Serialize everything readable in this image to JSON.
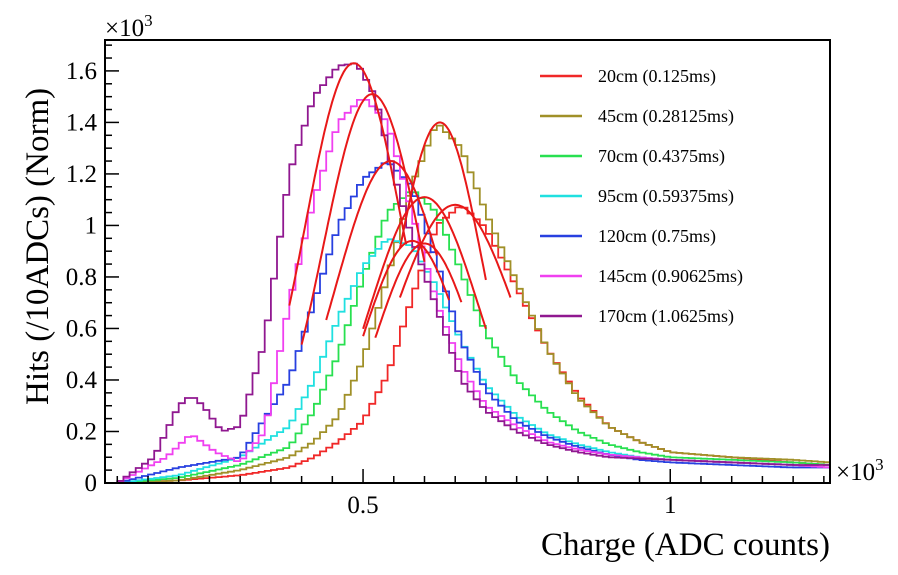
{
  "chart_data": {
    "type": "line",
    "xlabel": "Charge (ADC counts)",
    "ylabel": "Hits (/10ADCs) (Norm)",
    "x_multiplier_label": "×10",
    "y_multiplier_label": "×10",
    "multiplier_exponent": "3",
    "xlim": [
      0.08,
      1.26
    ],
    "ylim": [
      0,
      1.72
    ],
    "x_ticks": [
      {
        "value": 0.5,
        "label": "0.5"
      },
      {
        "value": 1,
        "label": "1"
      }
    ],
    "y_ticks": [
      {
        "value": 0,
        "label": "0"
      },
      {
        "value": 0.2,
        "label": "0.2"
      },
      {
        "value": 0.4,
        "label": "0.4"
      },
      {
        "value": 0.6,
        "label": "0.6"
      },
      {
        "value": 0.8,
        "label": "0.8"
      },
      {
        "value": 1.0,
        "label": "1"
      },
      {
        "value": 1.2,
        "label": "1.2"
      },
      {
        "value": 1.4,
        "label": "1.4"
      },
      {
        "value": 1.6,
        "label": "1.6"
      }
    ],
    "legend_position": "top-right",
    "series": [
      {
        "name": "20cm (0.125ms)",
        "color": "#f02828",
        "x": [
          0.1,
          0.2,
          0.3,
          0.38,
          0.42,
          0.46,
          0.5,
          0.54,
          0.58,
          0.62,
          0.66,
          0.7,
          0.75,
          0.8,
          0.85,
          0.9,
          0.95,
          1.0,
          1.1,
          1.2,
          1.26
        ],
        "y": [
          0.0,
          0.01,
          0.03,
          0.06,
          0.1,
          0.16,
          0.24,
          0.42,
          0.72,
          1.0,
          1.08,
          0.99,
          0.76,
          0.52,
          0.34,
          0.22,
          0.16,
          0.12,
          0.1,
          0.08,
          0.07
        ],
        "fit": {
          "mu": 0.65,
          "sigma": 0.1,
          "amp": 1.08,
          "range": [
            0.56,
            0.74
          ]
        }
      },
      {
        "name": "45cm (0.28125ms)",
        "color": "#a09028",
        "x": [
          0.1,
          0.2,
          0.3,
          0.38,
          0.42,
          0.46,
          0.5,
          0.54,
          0.58,
          0.62,
          0.66,
          0.7,
          0.75,
          0.8,
          0.85,
          0.9,
          0.95,
          1.0,
          1.1,
          1.2,
          1.26
        ],
        "y": [
          0.0,
          0.01,
          0.05,
          0.1,
          0.16,
          0.26,
          0.48,
          0.8,
          1.16,
          1.4,
          1.3,
          1.05,
          0.78,
          0.52,
          0.33,
          0.22,
          0.16,
          0.12,
          0.1,
          0.09,
          0.08
        ],
        "fit": {
          "mu": 0.625,
          "sigma": 0.07,
          "amp": 1.4,
          "range": [
            0.56,
            0.7
          ]
        }
      },
      {
        "name": "70cm (0.4375ms)",
        "color": "#28e050",
        "x": [
          0.1,
          0.2,
          0.3,
          0.38,
          0.42,
          0.46,
          0.5,
          0.54,
          0.58,
          0.62,
          0.66,
          0.7,
          0.75,
          0.8,
          0.85,
          0.9,
          0.95,
          1.0,
          1.1,
          1.2,
          1.26
        ],
        "y": [
          0.0,
          0.02,
          0.07,
          0.14,
          0.28,
          0.5,
          0.8,
          1.05,
          1.14,
          1.05,
          0.82,
          0.58,
          0.4,
          0.28,
          0.2,
          0.15,
          0.12,
          0.1,
          0.09,
          0.08,
          0.07
        ],
        "fit": {
          "mu": 0.6,
          "sigma": 0.09,
          "amp": 1.11,
          "range": [
            0.5,
            0.7
          ]
        }
      },
      {
        "name": "95cm (0.59375ms)",
        "color": "#20e0e0",
        "x": [
          0.1,
          0.2,
          0.3,
          0.38,
          0.42,
          0.46,
          0.5,
          0.54,
          0.58,
          0.62,
          0.66,
          0.7,
          0.75,
          0.8,
          0.85,
          0.9,
          0.95,
          1.0,
          1.1,
          1.2,
          1.26
        ],
        "y": [
          0.0,
          0.03,
          0.1,
          0.22,
          0.4,
          0.64,
          0.84,
          0.95,
          0.92,
          0.76,
          0.55,
          0.38,
          0.26,
          0.19,
          0.15,
          0.12,
          0.1,
          0.09,
          0.08,
          0.07,
          0.06
        ],
        "fit": {
          "mu": 0.58,
          "sigma": 0.08,
          "amp": 0.94,
          "range": [
            0.5,
            0.64
          ]
        }
      },
      {
        "name": "120cm (0.75ms)",
        "color": "#2840e0",
        "x": [
          0.1,
          0.2,
          0.3,
          0.38,
          0.42,
          0.46,
          0.5,
          0.54,
          0.58,
          0.62,
          0.66,
          0.7,
          0.75,
          0.8,
          0.85,
          0.9,
          0.95,
          1.0,
          1.1,
          1.2,
          1.26
        ],
        "y": [
          0.0,
          0.06,
          0.1,
          0.4,
          0.7,
          1.0,
          1.18,
          1.25,
          1.15,
          0.86,
          0.55,
          0.36,
          0.24,
          0.18,
          0.14,
          0.11,
          0.09,
          0.08,
          0.07,
          0.06,
          0.06
        ],
        "fit": {
          "mu": 0.545,
          "sigma": 0.09,
          "amp": 1.25,
          "range": [
            0.44,
            0.62
          ]
        }
      },
      {
        "name": "145cm (0.90625ms)",
        "color": "#f040f0",
        "x": [
          0.1,
          0.18,
          0.22,
          0.26,
          0.3,
          0.34,
          0.38,
          0.42,
          0.46,
          0.5,
          0.54,
          0.58,
          0.62,
          0.66,
          0.7,
          0.75,
          0.8,
          0.85,
          0.9,
          1.0,
          1.1,
          1.2,
          1.26
        ],
        "y": [
          0.0,
          0.1,
          0.19,
          0.12,
          0.08,
          0.2,
          0.7,
          1.1,
          1.4,
          1.5,
          1.4,
          1.05,
          0.7,
          0.45,
          0.3,
          0.22,
          0.16,
          0.13,
          0.11,
          0.09,
          0.08,
          0.07,
          0.06
        ],
        "fit": {
          "mu": 0.515,
          "sigma": 0.08,
          "amp": 1.51,
          "range": [
            0.4,
            0.6
          ]
        }
      },
      {
        "name": "170cm (1.0625ms)",
        "color": "#901890",
        "x": [
          0.1,
          0.16,
          0.2,
          0.22,
          0.24,
          0.27,
          0.3,
          0.34,
          0.38,
          0.42,
          0.46,
          0.49,
          0.52,
          0.55,
          0.58,
          0.62,
          0.66,
          0.7,
          0.75,
          0.8,
          0.85,
          0.9,
          1.0,
          1.1,
          1.2,
          1.26
        ],
        "y": [
          0.0,
          0.1,
          0.3,
          0.34,
          0.3,
          0.2,
          0.22,
          0.55,
          1.2,
          1.5,
          1.62,
          1.63,
          1.5,
          1.2,
          0.95,
          0.68,
          0.4,
          0.28,
          0.2,
          0.15,
          0.12,
          0.1,
          0.09,
          0.08,
          0.07,
          0.07
        ],
        "fit": {
          "mu": 0.485,
          "sigma": 0.08,
          "amp": 1.63,
          "range": [
            0.38,
            0.57
          ]
        }
      }
    ],
    "secondary_fit": {
      "color": "#e81818",
      "mu": 0.6,
      "sigma": 0.08,
      "amp": 0.93,
      "range": [
        0.52,
        0.66
      ]
    }
  }
}
